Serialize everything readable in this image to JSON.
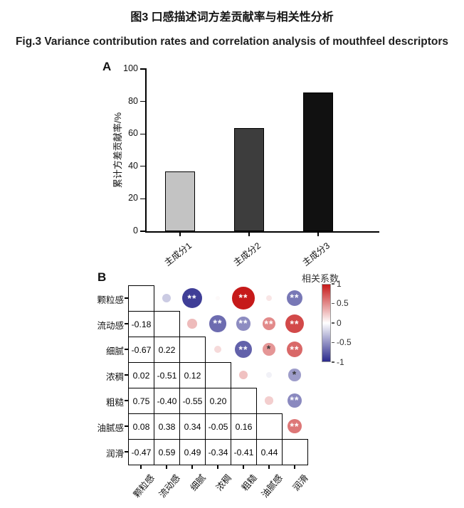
{
  "figure_title_zh": "图3 口感描述词方差贡献率与相关性分析",
  "figure_title_en": "Fig.3 Variance contribution rates and correlation analysis of mouthfeel descriptors",
  "panels": {
    "a_label": "A",
    "b_label": "B"
  },
  "chart_data": [
    {
      "type": "bar",
      "panel": "A",
      "title": "",
      "xlabel": "",
      "ylabel": "累计方差贡献率/%",
      "categories": [
        "主成分1",
        "主成分2",
        "主成分3"
      ],
      "values": [
        37,
        63.5,
        85.5
      ],
      "bar_colors": [
        "#c3c3c3",
        "#3d3d3d",
        "#111111"
      ],
      "bar_edge_color": "#000000",
      "ylim": [
        0,
        100
      ],
      "yticks": [
        0,
        20,
        40,
        60,
        80,
        100
      ],
      "grid": false
    },
    {
      "type": "heatmap",
      "panel": "B",
      "subtype": "correlation-matrix",
      "labels": [
        "颗粒感",
        "流动感",
        "细腻",
        "浓稠",
        "粗糙",
        "油腻感",
        "润滑"
      ],
      "legend_title": "相关系数",
      "legend_ticks": [
        "1",
        "0.5",
        "0",
        "-0.5",
        "-1"
      ],
      "legend_range": [
        1,
        -1
      ],
      "positive_color": "#c61a1a",
      "negative_color": "#2b2a8c",
      "correlations": [
        {
          "a": "颗粒感",
          "b": "流动感",
          "r": -0.18,
          "sig": ""
        },
        {
          "a": "颗粒感",
          "b": "细腻",
          "r": -0.67,
          "sig": "**"
        },
        {
          "a": "颗粒感",
          "b": "浓稠",
          "r": 0.02,
          "sig": ""
        },
        {
          "a": "颗粒感",
          "b": "粗糙",
          "r": 0.75,
          "sig": "**"
        },
        {
          "a": "颗粒感",
          "b": "油腻感",
          "r": 0.08,
          "sig": ""
        },
        {
          "a": "颗粒感",
          "b": "润滑",
          "r": -0.47,
          "sig": "**"
        },
        {
          "a": "流动感",
          "b": "细腻",
          "r": 0.22,
          "sig": ""
        },
        {
          "a": "流动感",
          "b": "浓稠",
          "r": -0.51,
          "sig": "**"
        },
        {
          "a": "流动感",
          "b": "粗糙",
          "r": -0.4,
          "sig": "**"
        },
        {
          "a": "流动感",
          "b": "油腻感",
          "r": 0.38,
          "sig": "**"
        },
        {
          "a": "流动感",
          "b": "润滑",
          "r": 0.59,
          "sig": "**"
        },
        {
          "a": "细腻",
          "b": "浓稠",
          "r": 0.12,
          "sig": ""
        },
        {
          "a": "细腻",
          "b": "粗糙",
          "r": -0.55,
          "sig": "**"
        },
        {
          "a": "细腻",
          "b": "油腻感",
          "r": 0.34,
          "sig": "*"
        },
        {
          "a": "细腻",
          "b": "润滑",
          "r": 0.49,
          "sig": "**"
        },
        {
          "a": "浓稠",
          "b": "粗糙",
          "r": 0.2,
          "sig": ""
        },
        {
          "a": "浓稠",
          "b": "油腻感",
          "r": -0.05,
          "sig": ""
        },
        {
          "a": "浓稠",
          "b": "润滑",
          "r": -0.34,
          "sig": "*"
        },
        {
          "a": "粗糙",
          "b": "油腻感",
          "r": 0.16,
          "sig": ""
        },
        {
          "a": "粗糙",
          "b": "润滑",
          "r": -0.41,
          "sig": "**"
        },
        {
          "a": "油腻感",
          "b": "润滑",
          "r": 0.44,
          "sig": "**"
        }
      ]
    }
  ]
}
